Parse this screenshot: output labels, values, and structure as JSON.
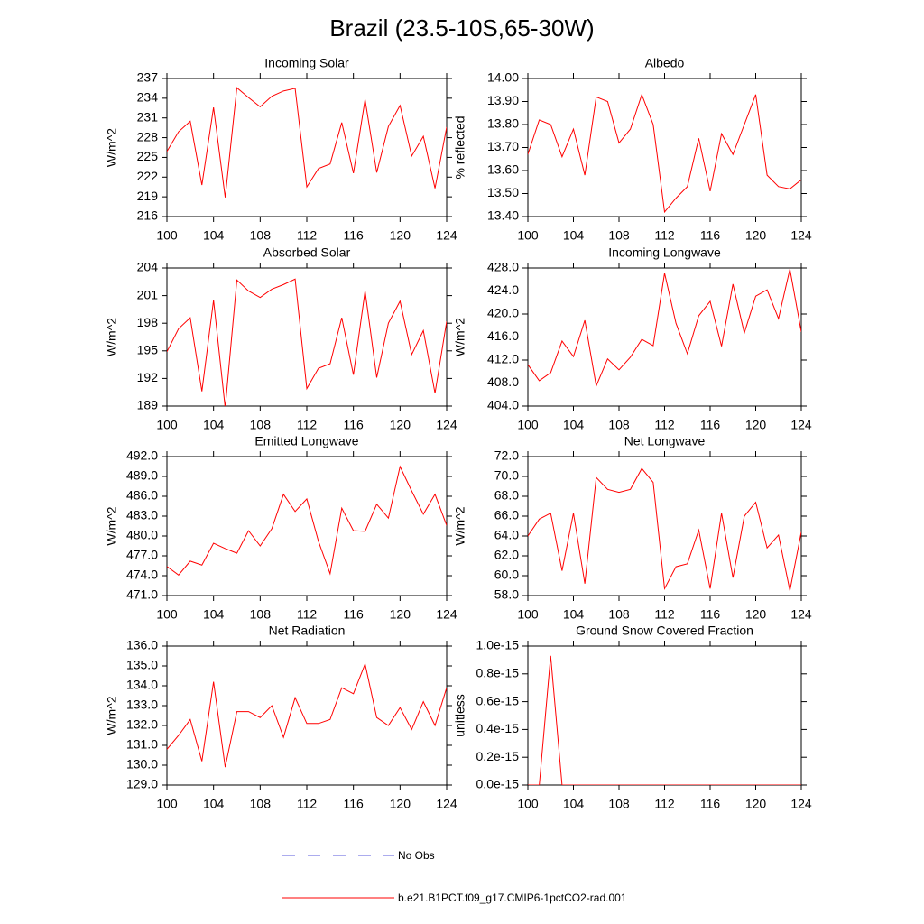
{
  "title": "Brazil (23.5-10S,65-30W)",
  "legend": [
    {
      "name": "No Obs",
      "color": "#5a5adc",
      "dash": true
    },
    {
      "name": "b.e21.B1PCT.f09_g17.CMIP6-1pctCO2-rad.001",
      "color": "#ff0000",
      "dash": false
    }
  ],
  "chart_data": [
    {
      "type": "line",
      "title": "Incoming Solar",
      "ylabel": "W/m^2",
      "color": "#ff0000",
      "x": [
        100,
        101,
        102,
        103,
        104,
        105,
        106,
        107,
        108,
        109,
        110,
        111,
        112,
        113,
        114,
        115,
        116,
        117,
        118,
        119,
        120,
        121,
        122,
        123,
        124
      ],
      "values": [
        225.9,
        228.9,
        230.5,
        220.8,
        232.6,
        218.9,
        235.6,
        234.1,
        232.7,
        234.3,
        235.1,
        235.5,
        220.5,
        223.3,
        224.0,
        230.3,
        222.6,
        233.8,
        222.7,
        229.7,
        232.9,
        225.2,
        228.2,
        220.3,
        229.6
      ],
      "xlim": [
        100,
        124
      ],
      "xticks": [
        100,
        104,
        108,
        112,
        116,
        120,
        124
      ],
      "ylim": [
        216,
        237
      ],
      "yticks": [
        216,
        219,
        222,
        225,
        228,
        231,
        234,
        237
      ]
    },
    {
      "type": "line",
      "title": "Albedo",
      "ylabel": "% reflected",
      "color": "#ff0000",
      "x": [
        100,
        101,
        102,
        103,
        104,
        105,
        106,
        107,
        108,
        109,
        110,
        111,
        112,
        113,
        114,
        115,
        116,
        117,
        118,
        119,
        120,
        121,
        122,
        123,
        124
      ],
      "values": [
        13.67,
        13.82,
        13.8,
        13.66,
        13.78,
        13.58,
        13.92,
        13.9,
        13.72,
        13.78,
        13.93,
        13.8,
        13.42,
        13.48,
        13.53,
        13.74,
        13.51,
        13.76,
        13.67,
        13.8,
        13.93,
        13.58,
        13.53,
        13.52,
        13.56
      ],
      "xlim": [
        100,
        124
      ],
      "xticks": [
        100,
        104,
        108,
        112,
        116,
        120,
        124
      ],
      "ylim": [
        13.4,
        14.0
      ],
      "yticks": [
        {
          "value": 13.4,
          "label": "13.40"
        },
        {
          "value": 13.5,
          "label": "13.50"
        },
        {
          "value": 13.6,
          "label": "13.60"
        },
        {
          "value": 13.7,
          "label": "13.70"
        },
        {
          "value": 13.8,
          "label": "13.80"
        },
        {
          "value": 13.9,
          "label": "13.90"
        },
        {
          "value": 14.0,
          "label": "14.00"
        }
      ]
    },
    {
      "type": "line",
      "title": "Absorbed Solar",
      "ylabel": "W/m^2",
      "color": "#ff0000",
      "x": [
        100,
        101,
        102,
        103,
        104,
        105,
        106,
        107,
        108,
        109,
        110,
        111,
        112,
        113,
        114,
        115,
        116,
        117,
        118,
        119,
        120,
        121,
        122,
        123,
        124
      ],
      "values": [
        194.9,
        197.4,
        198.6,
        190.6,
        200.5,
        188.8,
        202.7,
        201.5,
        200.8,
        201.7,
        202.2,
        202.8,
        190.9,
        193.1,
        193.6,
        198.6,
        192.4,
        201.5,
        192.1,
        198.0,
        200.4,
        194.6,
        197.2,
        190.4,
        198.2
      ],
      "xlim": [
        100,
        124
      ],
      "xticks": [
        100,
        104,
        108,
        112,
        116,
        120,
        124
      ],
      "ylim": [
        189,
        204
      ],
      "yticks": [
        189,
        192,
        195,
        198,
        201,
        204
      ]
    },
    {
      "type": "line",
      "title": "Incoming Longwave",
      "ylabel": "W/m^2",
      "color": "#ff0000",
      "x": [
        100,
        101,
        102,
        103,
        104,
        105,
        106,
        107,
        108,
        109,
        110,
        111,
        112,
        113,
        114,
        115,
        116,
        117,
        118,
        119,
        120,
        121,
        122,
        123,
        124
      ],
      "values": [
        411.2,
        408.4,
        409.8,
        415.3,
        412.6,
        418.9,
        407.5,
        412.2,
        410.3,
        412.5,
        415.6,
        414.5,
        427.1,
        418.4,
        413.1,
        419.7,
        422.2,
        414.4,
        425.2,
        416.7,
        423.1,
        424.2,
        419.2,
        427.8,
        416.9
      ],
      "xlim": [
        100,
        124
      ],
      "xticks": [
        100,
        104,
        108,
        112,
        116,
        120,
        124
      ],
      "ylim": [
        404,
        428
      ],
      "yticks": [
        {
          "value": 404,
          "label": "404.0"
        },
        {
          "value": 408,
          "label": "408.0"
        },
        {
          "value": 412,
          "label": "412.0"
        },
        {
          "value": 416,
          "label": "416.0"
        },
        {
          "value": 420,
          "label": "420.0"
        },
        {
          "value": 424,
          "label": "424.0"
        },
        {
          "value": 428,
          "label": "428.0"
        }
      ]
    },
    {
      "type": "line",
      "title": "Emitted Longwave",
      "ylabel": "W/m^2",
      "color": "#ff0000",
      "x": [
        100,
        101,
        102,
        103,
        104,
        105,
        106,
        107,
        108,
        109,
        110,
        111,
        112,
        113,
        114,
        115,
        116,
        117,
        118,
        119,
        120,
        121,
        122,
        123,
        124
      ],
      "values": [
        475.4,
        474.1,
        476.2,
        475.6,
        478.9,
        478.1,
        477.4,
        480.8,
        478.5,
        481.1,
        486.3,
        483.7,
        485.6,
        479.2,
        474.3,
        484.2,
        480.8,
        480.7,
        484.8,
        482.7,
        490.5,
        486.8,
        483.3,
        486.3,
        481.6
      ],
      "xlim": [
        100,
        124
      ],
      "xticks": [
        100,
        104,
        108,
        112,
        116,
        120,
        124
      ],
      "ylim": [
        471,
        492
      ],
      "yticks": [
        {
          "value": 471,
          "label": "471.0"
        },
        {
          "value": 474,
          "label": "474.0"
        },
        {
          "value": 477,
          "label": "477.0"
        },
        {
          "value": 480,
          "label": "480.0"
        },
        {
          "value": 483,
          "label": "483.0"
        },
        {
          "value": 486,
          "label": "486.0"
        },
        {
          "value": 489,
          "label": "489.0"
        },
        {
          "value": 492,
          "label": "492.0"
        }
      ]
    },
    {
      "type": "line",
      "title": "Net Longwave",
      "ylabel": "W/m^2",
      "color": "#ff0000",
      "x": [
        100,
        101,
        102,
        103,
        104,
        105,
        106,
        107,
        108,
        109,
        110,
        111,
        112,
        113,
        114,
        115,
        116,
        117,
        118,
        119,
        120,
        121,
        122,
        123,
        124
      ],
      "values": [
        64.0,
        65.7,
        66.3,
        60.5,
        66.3,
        59.2,
        69.9,
        68.7,
        68.4,
        68.7,
        70.8,
        69.4,
        58.7,
        60.9,
        61.2,
        64.6,
        58.7,
        66.3,
        59.8,
        66.0,
        67.4,
        62.8,
        64.1,
        58.5,
        64.4
      ],
      "xlim": [
        100,
        124
      ],
      "xticks": [
        100,
        104,
        108,
        112,
        116,
        120,
        124
      ],
      "ylim": [
        58,
        72
      ],
      "yticks": [
        {
          "value": 58,
          "label": "58.0"
        },
        {
          "value": 60,
          "label": "60.0"
        },
        {
          "value": 62,
          "label": "62.0"
        },
        {
          "value": 64,
          "label": "64.0"
        },
        {
          "value": 66,
          "label": "66.0"
        },
        {
          "value": 68,
          "label": "68.0"
        },
        {
          "value": 70,
          "label": "70.0"
        },
        {
          "value": 72,
          "label": "72.0"
        }
      ]
    },
    {
      "type": "line",
      "title": "Net Radiation",
      "ylabel": "W/m^2",
      "color": "#ff0000",
      "x": [
        100,
        101,
        102,
        103,
        104,
        105,
        106,
        107,
        108,
        109,
        110,
        111,
        112,
        113,
        114,
        115,
        116,
        117,
        118,
        119,
        120,
        121,
        122,
        123,
        124
      ],
      "values": [
        130.8,
        131.5,
        132.3,
        130.2,
        134.2,
        129.9,
        132.7,
        132.7,
        132.4,
        133.0,
        131.4,
        133.4,
        132.1,
        132.1,
        132.3,
        133.9,
        133.6,
        135.1,
        132.4,
        132.0,
        132.9,
        131.8,
        133.2,
        132.0,
        133.9
      ],
      "xlim": [
        100,
        124
      ],
      "xticks": [
        100,
        104,
        108,
        112,
        116,
        120,
        124
      ],
      "ylim": [
        129,
        136
      ],
      "yticks": [
        {
          "value": 129,
          "label": "129.0"
        },
        {
          "value": 130,
          "label": "130.0"
        },
        {
          "value": 131,
          "label": "131.0"
        },
        {
          "value": 132,
          "label": "132.0"
        },
        {
          "value": 133,
          "label": "133.0"
        },
        {
          "value": 134,
          "label": "134.0"
        },
        {
          "value": 135,
          "label": "135.0"
        },
        {
          "value": 136,
          "label": "136.0"
        }
      ]
    },
    {
      "type": "line",
      "title": "Ground Snow Covered Fraction",
      "ylabel": "unitless",
      "color": "#ff0000",
      "x": [
        100,
        101,
        102,
        103,
        104,
        105,
        106,
        107,
        108,
        109,
        110,
        111,
        112,
        113,
        114,
        115,
        116,
        117,
        118,
        119,
        120,
        121,
        122,
        123,
        124
      ],
      "values": [
        0,
        0,
        9.3e-16,
        0,
        0,
        0,
        0,
        0,
        0,
        0,
        0,
        0,
        0,
        0,
        0,
        0,
        0,
        0,
        0,
        0,
        0,
        0,
        0,
        0,
        0
      ],
      "xlim": [
        100,
        124
      ],
      "xticks": [
        100,
        104,
        108,
        112,
        116,
        120,
        124
      ],
      "ylim": [
        0,
        1e-15
      ],
      "yticks": [
        {
          "value": 0,
          "label": "0.0e-15"
        },
        {
          "value": 2e-16,
          "label": "0.2e-15"
        },
        {
          "value": 4e-16,
          "label": "0.4e-15"
        },
        {
          "value": 6e-16,
          "label": "0.6e-15"
        },
        {
          "value": 8e-16,
          "label": "0.8e-15"
        },
        {
          "value": 1e-15,
          "label": "1.0e-15"
        }
      ]
    }
  ]
}
